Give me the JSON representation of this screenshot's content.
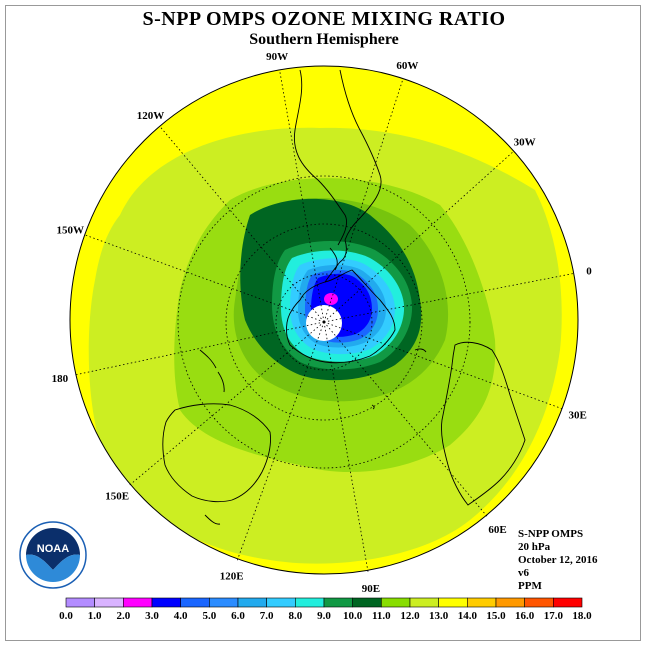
{
  "title": "S-NPP OMPS OZONE MIXING RATIO",
  "subtitle": "Southern Hemisphere",
  "longitude_labels": [
    "90W",
    "60W",
    "30W",
    "0",
    "30E",
    "60E",
    "90E",
    "120E",
    "150E",
    "180",
    "150W",
    "120W"
  ],
  "info": {
    "instrument": "S-NPP OMPS",
    "level": "20 hPa",
    "date": "October 12, 2016",
    "version": "v6",
    "units": "PPM"
  },
  "logo": {
    "text": "NOAA",
    "icon": "noaa-logo"
  },
  "colorbar": {
    "ticks": [
      "0.0",
      "1.0",
      "2.0",
      "3.0",
      "4.0",
      "5.0",
      "6.0",
      "7.0",
      "8.0",
      "9.0",
      "10.0",
      "11.0",
      "12.0",
      "13.0",
      "14.0",
      "15.0",
      "16.0",
      "17.0",
      "18.0"
    ],
    "colors": [
      "#b38cff",
      "#d9b3ff",
      "#ff00ff",
      "#0000ff",
      "#1a66ff",
      "#2b8cff",
      "#22aaee",
      "#33ccff",
      "#22eedd",
      "#119944",
      "#006622",
      "#88dd00",
      "#ccee22",
      "#ffff00",
      "#ffcc00",
      "#ff9900",
      "#ff5500",
      "#ff0000",
      "#aa6633"
    ]
  },
  "colors": {
    "high": "#ffff00",
    "mid_high": "#ccee22",
    "mid": "#99dd11",
    "low_green": "#006622",
    "cyan": "#33ccff",
    "blue": "#0000ff",
    "magenta": "#ff00ff",
    "no_data": "#ffffff"
  }
}
